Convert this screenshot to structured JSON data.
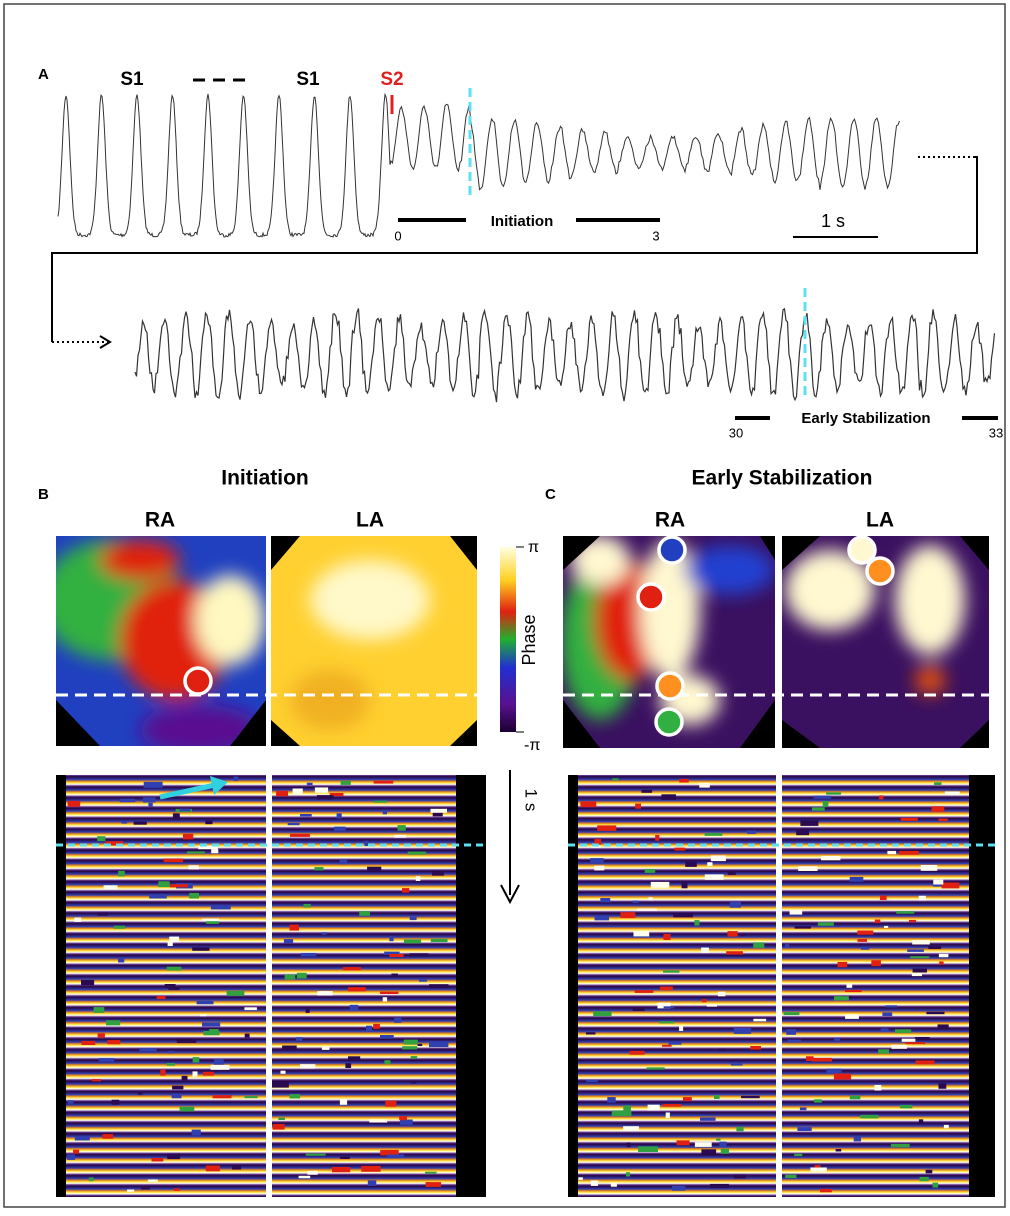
{
  "panels": {
    "a": {
      "label": "A",
      "stimuli": [
        "S1",
        "S1",
        "S2"
      ],
      "initiation": {
        "label": "Initiation",
        "start": 0,
        "end": 3
      },
      "scale_bar": "1 s",
      "stabilization": {
        "label": "Early Stabilization",
        "start": 30,
        "end": 33
      }
    },
    "b": {
      "label": "B",
      "title": "Initiation",
      "regions": [
        "RA",
        "LA"
      ]
    },
    "c": {
      "label": "C",
      "title": "Early Stabilization",
      "regions": [
        "RA",
        "LA"
      ]
    },
    "colorbar": {
      "max": "π",
      "label": "Phase",
      "min": "-π"
    },
    "time_arrow": "1 s"
  }
}
